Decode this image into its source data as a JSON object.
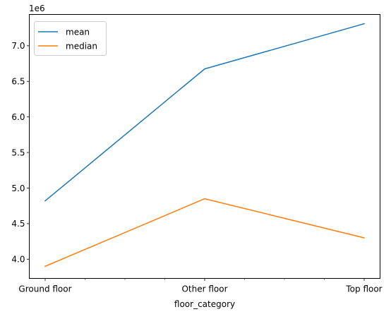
{
  "chart_data": {
    "type": "line",
    "title": "",
    "xlabel": "floor_category",
    "ylabel": "",
    "offset_label": "1e6",
    "categories": [
      "Ground floor",
      "Other floor",
      "Top floor"
    ],
    "series": [
      {
        "name": "mean",
        "color": "#1f77b4",
        "values": [
          4820000,
          6675000,
          7310000
        ]
      },
      {
        "name": "median",
        "color": "#ff7f0e",
        "values": [
          3900000,
          4850000,
          4300000
        ]
      }
    ],
    "ylim": [
      3730000,
      7440000
    ],
    "yticks": [
      {
        "value": 4000000,
        "label": "4.0"
      },
      {
        "value": 4500000,
        "label": "4.5"
      },
      {
        "value": 5000000,
        "label": "5.0"
      },
      {
        "value": 5500000,
        "label": "5.5"
      },
      {
        "value": 6000000,
        "label": "6.0"
      },
      {
        "value": 6500000,
        "label": "6.5"
      },
      {
        "value": 7000000,
        "label": "7.0"
      }
    ],
    "minor_xticks": [
      0.25,
      0.5,
      0.75,
      1.25,
      1.5,
      1.75
    ],
    "grid": false,
    "legend": "top-left"
  }
}
